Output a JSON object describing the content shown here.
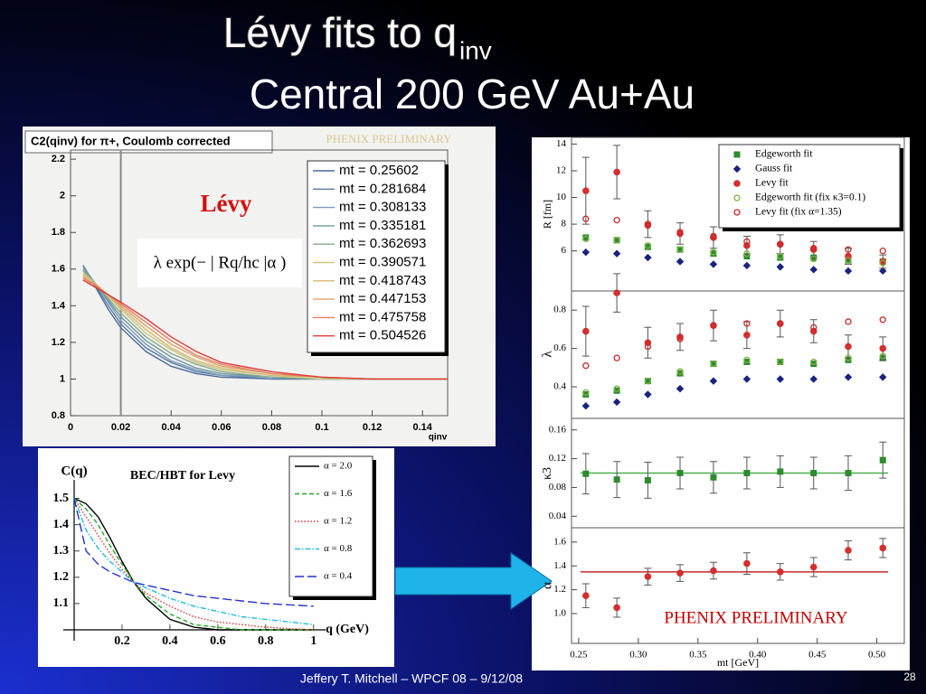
{
  "slide": {
    "title_line1": "Lévy fits to q",
    "title_sub": "inv",
    "title_line2": "Central 200 GeV Au+Au",
    "footer": "Jeffery T. Mitchell – WPCF 08 – 9/12/08",
    "page": "28"
  },
  "chart_data": [
    {
      "type": "line",
      "title": "C2(qinv) for π+, Coulomb corrected",
      "x_label": "qinv",
      "annotations": {
        "levy": "Lévy",
        "formula": "λ exp(− | Rq/hc |α )",
        "preliminary": "PHENIX PRELIMINARY"
      },
      "vline": 0.02,
      "xlim": [
        0,
        0.15
      ],
      "ylim": [
        0.8,
        2.25
      ],
      "xticks": [
        0,
        0.02,
        0.04,
        0.06,
        0.08,
        0.1,
        0.12,
        0.14
      ],
      "yticks": [
        0.8,
        1,
        1.2,
        1.4,
        1.6,
        1.8,
        2,
        2.2
      ],
      "legend": "upper right",
      "x": [
        0.005,
        0.01,
        0.015,
        0.02,
        0.03,
        0.04,
        0.05,
        0.06,
        0.08,
        0.1,
        0.12,
        0.15
      ],
      "series": [
        {
          "name": "mt = 0.25602",
          "color": "#4a6a9a",
          "style": "solid",
          "values": [
            1.62,
            1.5,
            1.38,
            1.28,
            1.15,
            1.07,
            1.03,
            1.01,
            1.0,
            1.0,
            1.0,
            1.0
          ]
        },
        {
          "name": "mt = 0.281684",
          "color": "#5a7aa8",
          "style": "solid",
          "values": [
            1.62,
            1.51,
            1.4,
            1.3,
            1.17,
            1.09,
            1.04,
            1.02,
            1.0,
            1.0,
            1.0,
            1.0
          ]
        },
        {
          "name": "mt = 0.308133",
          "color": "#7a9ab8",
          "style": "solid",
          "values": [
            1.61,
            1.52,
            1.42,
            1.32,
            1.19,
            1.1,
            1.05,
            1.02,
            1.01,
            1.0,
            1.0,
            1.0
          ]
        },
        {
          "name": "mt = 0.335181",
          "color": "#6e9a9a",
          "style": "solid",
          "values": [
            1.6,
            1.52,
            1.43,
            1.34,
            1.21,
            1.12,
            1.06,
            1.03,
            1.01,
            1.0,
            1.0,
            1.0
          ]
        },
        {
          "name": "mt = 0.362693",
          "color": "#8aa890",
          "style": "solid",
          "values": [
            1.59,
            1.52,
            1.44,
            1.36,
            1.23,
            1.14,
            1.08,
            1.04,
            1.01,
            1.0,
            1.0,
            1.0
          ]
        },
        {
          "name": "mt = 0.390571",
          "color": "#c8c880",
          "style": "solid",
          "values": [
            1.58,
            1.52,
            1.45,
            1.38,
            1.25,
            1.16,
            1.09,
            1.05,
            1.02,
            1.0,
            1.0,
            1.0
          ]
        },
        {
          "name": "mt = 0.418743",
          "color": "#d8b870",
          "style": "solid",
          "values": [
            1.57,
            1.52,
            1.46,
            1.39,
            1.27,
            1.17,
            1.1,
            1.06,
            1.02,
            1.01,
            1.0,
            1.0
          ]
        },
        {
          "name": "mt = 0.447153",
          "color": "#e0a070",
          "style": "solid",
          "values": [
            1.56,
            1.51,
            1.46,
            1.4,
            1.29,
            1.19,
            1.12,
            1.07,
            1.03,
            1.01,
            1.0,
            1.0
          ]
        },
        {
          "name": "mt = 0.475758",
          "color": "#e08060",
          "style": "solid",
          "values": [
            1.55,
            1.51,
            1.46,
            1.41,
            1.31,
            1.21,
            1.13,
            1.08,
            1.03,
            1.01,
            1.0,
            1.0
          ]
        },
        {
          "name": "mt = 0.504526",
          "color": "#e03c3c",
          "style": "solid",
          "values": [
            1.54,
            1.5,
            1.46,
            1.42,
            1.33,
            1.23,
            1.15,
            1.09,
            1.04,
            1.01,
            1.0,
            1.0
          ]
        }
      ]
    },
    {
      "type": "line",
      "title": "BEC/HBT for Levy",
      "y_label": "C(q)",
      "x_label": "q (GeV)",
      "xlim": [
        0,
        1.05
      ],
      "ylim": [
        1.0,
        1.55
      ],
      "xticks": [
        0.2,
        0.4,
        0.6,
        0.8,
        1
      ],
      "yticks": [
        1.1,
        1.2,
        1.3,
        1.4,
        1.5
      ],
      "legend": "upper right",
      "x": [
        0,
        0.05,
        0.1,
        0.15,
        0.2,
        0.25,
        0.3,
        0.4,
        0.5,
        0.6,
        0.7,
        0.8,
        1
      ],
      "series": [
        {
          "name": "α = 2.0",
          "color": "#000000",
          "style": "solid",
          "values": [
            1.5,
            1.48,
            1.43,
            1.35,
            1.26,
            1.18,
            1.12,
            1.04,
            1.01,
            1.0,
            1.0,
            1.0,
            1.0
          ]
        },
        {
          "name": "α = 1.6",
          "color": "#22aa22",
          "style": "dashed",
          "values": [
            1.5,
            1.46,
            1.4,
            1.32,
            1.25,
            1.18,
            1.13,
            1.06,
            1.02,
            1.01,
            1.0,
            1.0,
            1.0
          ]
        },
        {
          "name": "α = 1.2",
          "color": "#dd3333",
          "style": "dotted",
          "values": [
            1.5,
            1.43,
            1.36,
            1.29,
            1.23,
            1.18,
            1.14,
            1.09,
            1.05,
            1.03,
            1.02,
            1.01,
            1.0
          ]
        },
        {
          "name": "α = 0.8",
          "color": "#22bbdd",
          "style": "dashdot",
          "values": [
            1.5,
            1.38,
            1.31,
            1.26,
            1.22,
            1.18,
            1.16,
            1.12,
            1.09,
            1.07,
            1.05,
            1.04,
            1.02
          ]
        },
        {
          "name": "α = 0.4",
          "color": "#2233cc",
          "style": "longdash",
          "values": [
            1.5,
            1.3,
            1.25,
            1.22,
            1.2,
            1.18,
            1.17,
            1.15,
            1.13,
            1.12,
            1.11,
            1.1,
            1.09
          ]
        }
      ]
    },
    {
      "type": "scatter",
      "y_label": "R [fm]",
      "xlim": [
        0.244,
        0.523
      ],
      "ylim": [
        3,
        14.5
      ],
      "yticks": [
        6,
        8,
        10,
        12,
        14
      ],
      "legend": "upper right",
      "x": [
        0.256,
        0.282,
        0.308,
        0.335,
        0.363,
        0.391,
        0.419,
        0.447,
        0.476,
        0.505
      ],
      "series": [
        {
          "name": "Edgeworth fit",
          "color": "#2e8b2e",
          "marker": "square",
          "values": [
            7.0,
            6.8,
            6.3,
            6.1,
            5.8,
            5.6,
            5.5,
            5.5,
            5.3,
            5.2
          ]
        },
        {
          "name": "Gauss fit",
          "color": "#1a237e",
          "marker": "diamond",
          "values": [
            5.9,
            5.8,
            5.5,
            5.2,
            5.0,
            4.9,
            4.8,
            4.6,
            4.5,
            4.5
          ]
        },
        {
          "name": "Levy fit",
          "color": "#d32f2f",
          "marker": "circle",
          "values": [
            10.5,
            11.9,
            8.0,
            7.3,
            7.0,
            6.4,
            6.5,
            6.1,
            5.6,
            5.2
          ],
          "errors": [
            2.5,
            2.0,
            1.0,
            0.8,
            0.8,
            0.7,
            0.7,
            0.6,
            0.6,
            0.5
          ]
        },
        {
          "name": "Edgeworth fit (fix κ3=0.1)",
          "color": "#7cb342",
          "marker": "open-circle",
          "values": [
            6.9,
            6.8,
            6.4,
            6.1,
            5.9,
            5.8,
            5.6,
            5.4,
            5.3,
            5.1
          ]
        },
        {
          "name": "Levy fit (fix α=1.35)",
          "color": "#c62828",
          "marker": "open-circle",
          "values": [
            8.4,
            8.3,
            7.9,
            7.4,
            7.1,
            6.7,
            6.5,
            6.2,
            6.1,
            6.0
          ]
        }
      ]
    },
    {
      "type": "scatter",
      "y_label": "λ",
      "xlim": [
        0.244,
        0.523
      ],
      "ylim": [
        0.235,
        0.9
      ],
      "yticks": [
        0.4,
        0.6,
        0.8
      ],
      "x": [
        0.256,
        0.282,
        0.308,
        0.335,
        0.363,
        0.391,
        0.419,
        0.447,
        0.476,
        0.505
      ],
      "series": [
        {
          "color": "#2e8b2e",
          "marker": "square",
          "values": [
            0.36,
            0.38,
            0.43,
            0.47,
            0.52,
            0.53,
            0.53,
            0.52,
            0.54,
            0.55
          ]
        },
        {
          "color": "#1a237e",
          "marker": "diamond",
          "values": [
            0.3,
            0.32,
            0.36,
            0.39,
            0.43,
            0.44,
            0.44,
            0.44,
            0.45,
            0.45
          ]
        },
        {
          "color": "#d32f2f",
          "marker": "circle",
          "values": [
            0.69,
            0.89,
            0.63,
            0.66,
            0.72,
            0.67,
            0.73,
            0.69,
            0.61,
            0.6
          ],
          "errors": [
            0.13,
            0.1,
            0.08,
            0.07,
            0.08,
            0.07,
            0.07,
            0.06,
            0.06,
            0.06
          ]
        },
        {
          "color": "#7cb342",
          "marker": "open-circle",
          "values": [
            0.37,
            0.39,
            0.43,
            0.48,
            0.52,
            0.54,
            0.53,
            0.53,
            0.55,
            0.56
          ]
        },
        {
          "color": "#c62828",
          "marker": "open-circle",
          "values": [
            0.51,
            0.55,
            0.61,
            0.65,
            0.72,
            0.73,
            0.73,
            0.71,
            0.74,
            0.75
          ]
        }
      ]
    },
    {
      "type": "scatter",
      "y_label": "κ3",
      "xlim": [
        0.244,
        0.523
      ],
      "ylim": [
        0.024,
        0.176
      ],
      "yticks": [
        0.04,
        0.08,
        0.12,
        0.16
      ],
      "hline": 0.1,
      "hline_color": "#4caf50",
      "x": [
        0.256,
        0.282,
        0.308,
        0.335,
        0.363,
        0.391,
        0.419,
        0.447,
        0.476,
        0.505
      ],
      "series": [
        {
          "color": "#2e8b2e",
          "marker": "square",
          "values": [
            0.099,
            0.091,
            0.09,
            0.1,
            0.094,
            0.1,
            0.102,
            0.1,
            0.1,
            0.118
          ],
          "errors": [
            0.028,
            0.025,
            0.025,
            0.022,
            0.022,
            0.022,
            0.022,
            0.022,
            0.024,
            0.025
          ]
        }
      ]
    },
    {
      "type": "scatter",
      "y_label": "α",
      "x_label": "mt [GeV]",
      "annotation": "PHENIX PRELIMINARY",
      "xlim": [
        0.244,
        0.523
      ],
      "ylim": [
        0.75,
        1.72
      ],
      "yticks": [
        {
          "value": 1,
          "label": "1.0"
        },
        1.2,
        1.4,
        1.6
      ],
      "hline": 1.35,
      "hline_color": "#c62828",
      "xticks": [
        0.25,
        {
          "value": 0.3,
          "label": "0.30"
        },
        0.35,
        {
          "value": 0.4,
          "label": "0.40"
        },
        0.45,
        {
          "value": 0.5,
          "label": "0.50"
        }
      ],
      "x": [
        0.256,
        0.282,
        0.308,
        0.335,
        0.363,
        0.391,
        0.419,
        0.447,
        0.476,
        0.505
      ],
      "series": [
        {
          "color": "#d32f2f",
          "marker": "circle",
          "values": [
            1.15,
            1.05,
            1.31,
            1.34,
            1.36,
            1.42,
            1.35,
            1.39,
            1.53,
            1.55
          ],
          "errors": [
            0.1,
            0.08,
            0.07,
            0.07,
            0.07,
            0.09,
            0.07,
            0.08,
            0.08,
            0.08
          ]
        }
      ]
    }
  ]
}
